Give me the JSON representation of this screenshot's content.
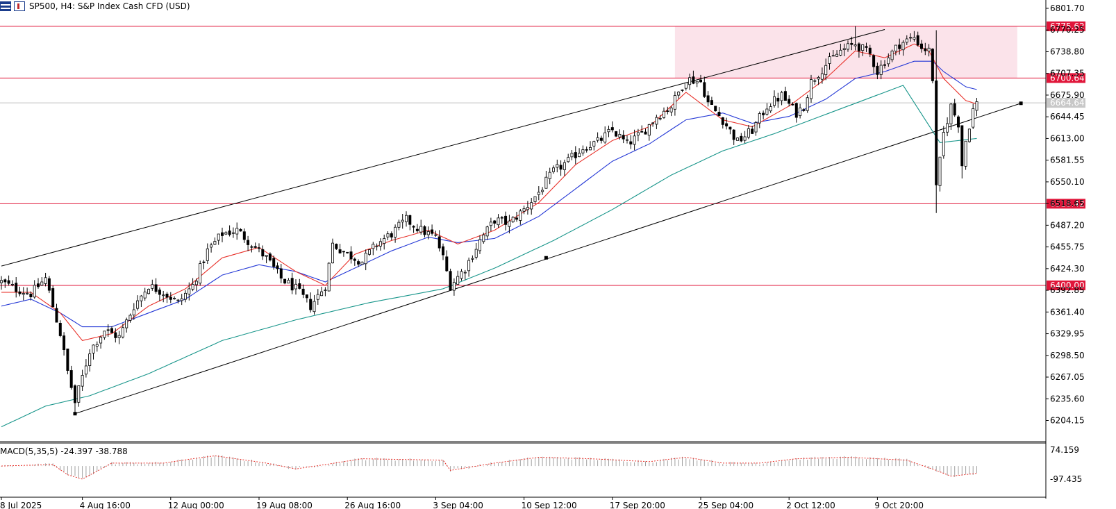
{
  "header": {
    "title": "SP500, H4:  S&P Index Cash CFD (USD)"
  },
  "macd": {
    "label": "MACD(5,35,5) -24.397 -38.788",
    "axis_top": "74.159",
    "axis_bottom": "-97.435"
  },
  "colors": {
    "candle": "#000000",
    "ema_fast": "#e8312a",
    "ema_mid": "#2438d6",
    "ema_slow": "#17958a",
    "level_line": "#e0163a",
    "resistance_zone": "#fbe3ea",
    "current_price_line": "#c0c0c0",
    "macd_signal": "#e8312a",
    "macd_hist": "#a0a0a0"
  },
  "chart_data": {
    "type": "candlestick",
    "symbol": "SP500",
    "timeframe": "H4",
    "x_tick_labels": [
      "8 Jul 2025",
      "4 Aug 16:00",
      "12 Aug 00:00",
      "19 Aug 08:00",
      "26 Aug 16:00",
      "3 Sep 04:00",
      "10 Sep 12:00",
      "17 Sep 20:00",
      "25 Sep 04:00",
      "2 Oct 12:00",
      "9 Oct 20:00"
    ],
    "y_tick_labels": [
      "6801.70",
      "6770.25",
      "6738.80",
      "6707.35",
      "6675.90",
      "6644.45",
      "6613.00",
      "6581.55",
      "6550.10",
      "6518.65",
      "6487.20",
      "6455.75",
      "6424.30",
      "6392.85",
      "6361.40",
      "6329.95",
      "6298.50",
      "6267.05",
      "6235.60",
      "6204.15"
    ],
    "ylim": [
      6190,
      6810
    ],
    "levels": [
      {
        "label": "6775.62",
        "value": 6775.62
      },
      {
        "label": "6700.64",
        "value": 6700.64
      },
      {
        "label": "6518.42",
        "value": 6518.42
      },
      {
        "label": "6400.00",
        "value": 6400.0
      }
    ],
    "current_price": {
      "label": "6664.64",
      "value": 6664.64
    },
    "resistance_zone": {
      "low": 6700.64,
      "high": 6775.62,
      "x_start": 183,
      "x_end": 276
    },
    "channel": {
      "upper": [
        {
          "x": 0,
          "y": 6428
        },
        {
          "x": 240,
          "y": 6771
        }
      ],
      "lower": [
        {
          "x": 20,
          "y": 6214
        },
        {
          "x": 277,
          "y": 6664
        }
      ]
    },
    "anchor_points": [
      {
        "x": 20,
        "y": 6214
      },
      {
        "x": 148,
        "y": 6440
      },
      {
        "x": 277,
        "y": 6664
      }
    ],
    "close_anchors": [
      [
        0,
        6405
      ],
      [
        4,
        6395
      ],
      [
        8,
        6388
      ],
      [
        12,
        6410
      ],
      [
        16,
        6330
      ],
      [
        18,
        6275
      ],
      [
        20,
        6230
      ],
      [
        24,
        6305
      ],
      [
        28,
        6335
      ],
      [
        32,
        6325
      ],
      [
        36,
        6370
      ],
      [
        40,
        6400
      ],
      [
        44,
        6390
      ],
      [
        48,
        6375
      ],
      [
        52,
        6400
      ],
      [
        56,
        6450
      ],
      [
        60,
        6475
      ],
      [
        64,
        6480
      ],
      [
        68,
        6460
      ],
      [
        72,
        6440
      ],
      [
        76,
        6410
      ],
      [
        80,
        6395
      ],
      [
        84,
        6370
      ],
      [
        88,
        6400
      ],
      [
        90,
        6460
      ],
      [
        94,
        6445
      ],
      [
        98,
        6435
      ],
      [
        102,
        6460
      ],
      [
        106,
        6475
      ],
      [
        110,
        6495
      ],
      [
        114,
        6480
      ],
      [
        118,
        6470
      ],
      [
        120,
        6440
      ],
      [
        122,
        6400
      ],
      [
        126,
        6425
      ],
      [
        130,
        6465
      ],
      [
        134,
        6495
      ],
      [
        138,
        6490
      ],
      [
        142,
        6510
      ],
      [
        146,
        6535
      ],
      [
        150,
        6565
      ],
      [
        154,
        6580
      ],
      [
        158,
        6600
      ],
      [
        162,
        6608
      ],
      [
        166,
        6625
      ],
      [
        170,
        6605
      ],
      [
        174,
        6620
      ],
      [
        178,
        6645
      ],
      [
        182,
        6660
      ],
      [
        186,
        6700
      ],
      [
        190,
        6695
      ],
      [
        192,
        6665
      ],
      [
        196,
        6640
      ],
      [
        200,
        6608
      ],
      [
        204,
        6625
      ],
      [
        208,
        6660
      ],
      [
        212,
        6675
      ],
      [
        216,
        6650
      ],
      [
        218,
        6660
      ],
      [
        220,
        6695
      ],
      [
        224,
        6720
      ],
      [
        228,
        6740
      ],
      [
        232,
        6750
      ],
      [
        236,
        6735
      ],
      [
        238,
        6710
      ],
      [
        240,
        6725
      ],
      [
        244,
        6750
      ],
      [
        248,
        6760
      ],
      [
        250,
        6745
      ],
      [
        252,
        6740
      ],
      [
        253,
        6700
      ],
      [
        254,
        6540
      ],
      [
        256,
        6620
      ],
      [
        258,
        6660
      ],
      [
        260,
        6635
      ],
      [
        261,
        6575
      ],
      [
        262,
        6610
      ],
      [
        264,
        6655
      ],
      [
        265,
        6664
      ]
    ],
    "ema_fast_anchors": [
      [
        0,
        6390
      ],
      [
        8,
        6390
      ],
      [
        16,
        6360
      ],
      [
        22,
        6320
      ],
      [
        30,
        6330
      ],
      [
        40,
        6370
      ],
      [
        50,
        6395
      ],
      [
        60,
        6440
      ],
      [
        70,
        6455
      ],
      [
        80,
        6420
      ],
      [
        88,
        6400
      ],
      [
        96,
        6445
      ],
      [
        106,
        6465
      ],
      [
        116,
        6480
      ],
      [
        124,
        6460
      ],
      [
        134,
        6480
      ],
      [
        146,
        6520
      ],
      [
        156,
        6575
      ],
      [
        166,
        6610
      ],
      [
        176,
        6630
      ],
      [
        186,
        6680
      ],
      [
        196,
        6640
      ],
      [
        204,
        6630
      ],
      [
        214,
        6660
      ],
      [
        224,
        6700
      ],
      [
        232,
        6740
      ],
      [
        240,
        6730
      ],
      [
        248,
        6750
      ],
      [
        252,
        6740
      ],
      [
        256,
        6700
      ],
      [
        262,
        6668
      ],
      [
        265,
        6663
      ]
    ],
    "ema_mid_anchors": [
      [
        0,
        6370
      ],
      [
        8,
        6380
      ],
      [
        16,
        6360
      ],
      [
        22,
        6340
      ],
      [
        30,
        6340
      ],
      [
        40,
        6360
      ],
      [
        50,
        6380
      ],
      [
        60,
        6415
      ],
      [
        70,
        6430
      ],
      [
        80,
        6420
      ],
      [
        88,
        6405
      ],
      [
        96,
        6425
      ],
      [
        106,
        6450
      ],
      [
        116,
        6470
      ],
      [
        124,
        6462
      ],
      [
        134,
        6468
      ],
      [
        146,
        6500
      ],
      [
        156,
        6540
      ],
      [
        166,
        6580
      ],
      [
        176,
        6605
      ],
      [
        186,
        6640
      ],
      [
        196,
        6650
      ],
      [
        204,
        6635
      ],
      [
        214,
        6645
      ],
      [
        224,
        6670
      ],
      [
        232,
        6700
      ],
      [
        240,
        6710
      ],
      [
        248,
        6725
      ],
      [
        253,
        6725
      ],
      [
        256,
        6710
      ],
      [
        262,
        6688
      ],
      [
        265,
        6684
      ]
    ],
    "ema_slow_anchors": [
      [
        0,
        6195
      ],
      [
        12,
        6225
      ],
      [
        24,
        6240
      ],
      [
        40,
        6272
      ],
      [
        60,
        6320
      ],
      [
        80,
        6350
      ],
      [
        100,
        6375
      ],
      [
        120,
        6395
      ],
      [
        134,
        6425
      ],
      [
        150,
        6465
      ],
      [
        166,
        6510
      ],
      [
        182,
        6560
      ],
      [
        196,
        6595
      ],
      [
        210,
        6620
      ],
      [
        230,
        6660
      ],
      [
        245,
        6690
      ],
      [
        255,
        6607
      ],
      [
        265,
        6613
      ]
    ],
    "macd_signal_anchors": [
      [
        0,
        0.45
      ],
      [
        14,
        0.5
      ],
      [
        18,
        0.15
      ],
      [
        22,
        0.0
      ],
      [
        30,
        0.55
      ],
      [
        44,
        0.55
      ],
      [
        52,
        0.7
      ],
      [
        58,
        0.8
      ],
      [
        72,
        0.55
      ],
      [
        80,
        0.35
      ],
      [
        88,
        0.5
      ],
      [
        98,
        0.7
      ],
      [
        120,
        0.65
      ],
      [
        122,
        0.3
      ],
      [
        134,
        0.55
      ],
      [
        146,
        0.75
      ],
      [
        160,
        0.7
      ],
      [
        176,
        0.6
      ],
      [
        186,
        0.75
      ],
      [
        196,
        0.55
      ],
      [
        206,
        0.55
      ],
      [
        216,
        0.7
      ],
      [
        230,
        0.75
      ],
      [
        246,
        0.65
      ],
      [
        254,
        0.3
      ],
      [
        258,
        0.1
      ],
      [
        265,
        0.2
      ]
    ]
  }
}
